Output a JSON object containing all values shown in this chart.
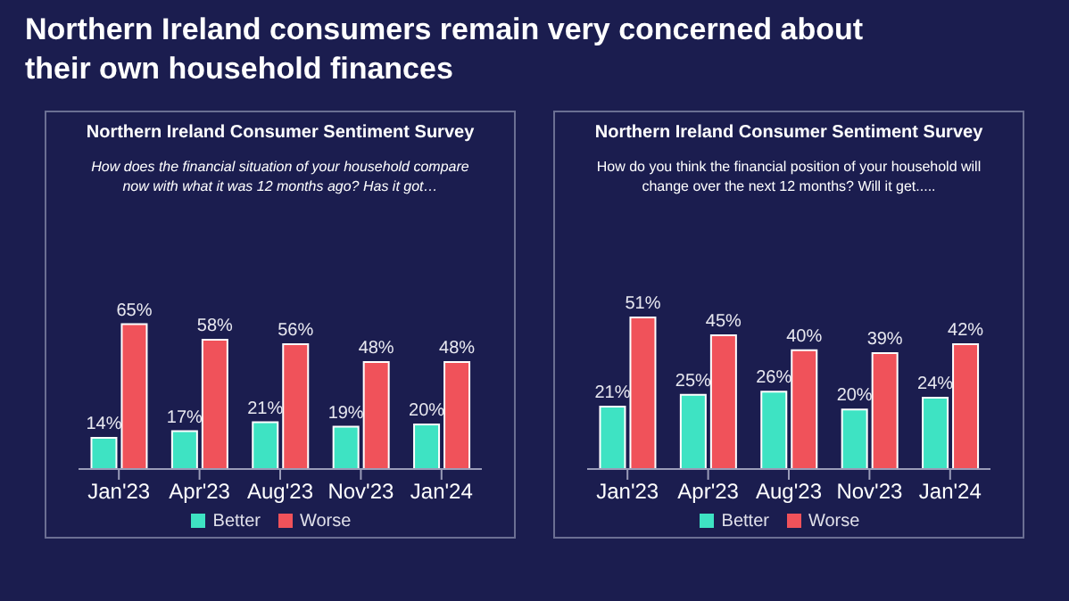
{
  "chart_data": [
    {
      "type": "bar",
      "title": "Northern Ireland Consumer Sentiment Survey",
      "subtitle": "How does the financial situation of your household compare now with what it was 12 months ago? Has it got…",
      "annotations": [
        "Northern Ireland consumers remain very concerned about their own household finances"
      ],
      "categories": [
        "Jan'23",
        "Apr'23",
        "Aug'23",
        "Nov'23",
        "Jan'24"
      ],
      "series": [
        {
          "name": "Better",
          "color": "#3ee3c3",
          "values": [
            14,
            17,
            21,
            19,
            20
          ],
          "value_labels": [
            "14%",
            "17%",
            "21%",
            "19%",
            "20%"
          ]
        },
        {
          "name": "Worse",
          "color": "#f0525a",
          "values": [
            65,
            58,
            56,
            48,
            48
          ],
          "value_labels": [
            "65%",
            "58%",
            "56%",
            "48%",
            "48%"
          ]
        }
      ],
      "tick_labels": "x",
      "legend": "bottom"
    },
    {
      "type": "bar",
      "title": "Northern Ireland Consumer Sentiment Survey",
      "subtitle": "How do you think the financial position of your household will change over the next 12 months? Will it get.....",
      "categories": [
        "Jan'23",
        "Apr'23",
        "Aug'23",
        "Nov'23",
        "Jan'24"
      ],
      "series": [
        {
          "name": "Better",
          "color": "#3ee3c3",
          "values": [
            21,
            25,
            26,
            20,
            24
          ],
          "value_labels": [
            "21%",
            "25%",
            "26%",
            "20%",
            "24%"
          ]
        },
        {
          "name": "Worse",
          "color": "#f0525a",
          "values": [
            51,
            45,
            40,
            39,
            42
          ],
          "value_labels": [
            "51%",
            "45%",
            "40%",
            "39%",
            "42%"
          ]
        }
      ],
      "tick_labels": "x",
      "legend": "bottom"
    }
  ]
}
